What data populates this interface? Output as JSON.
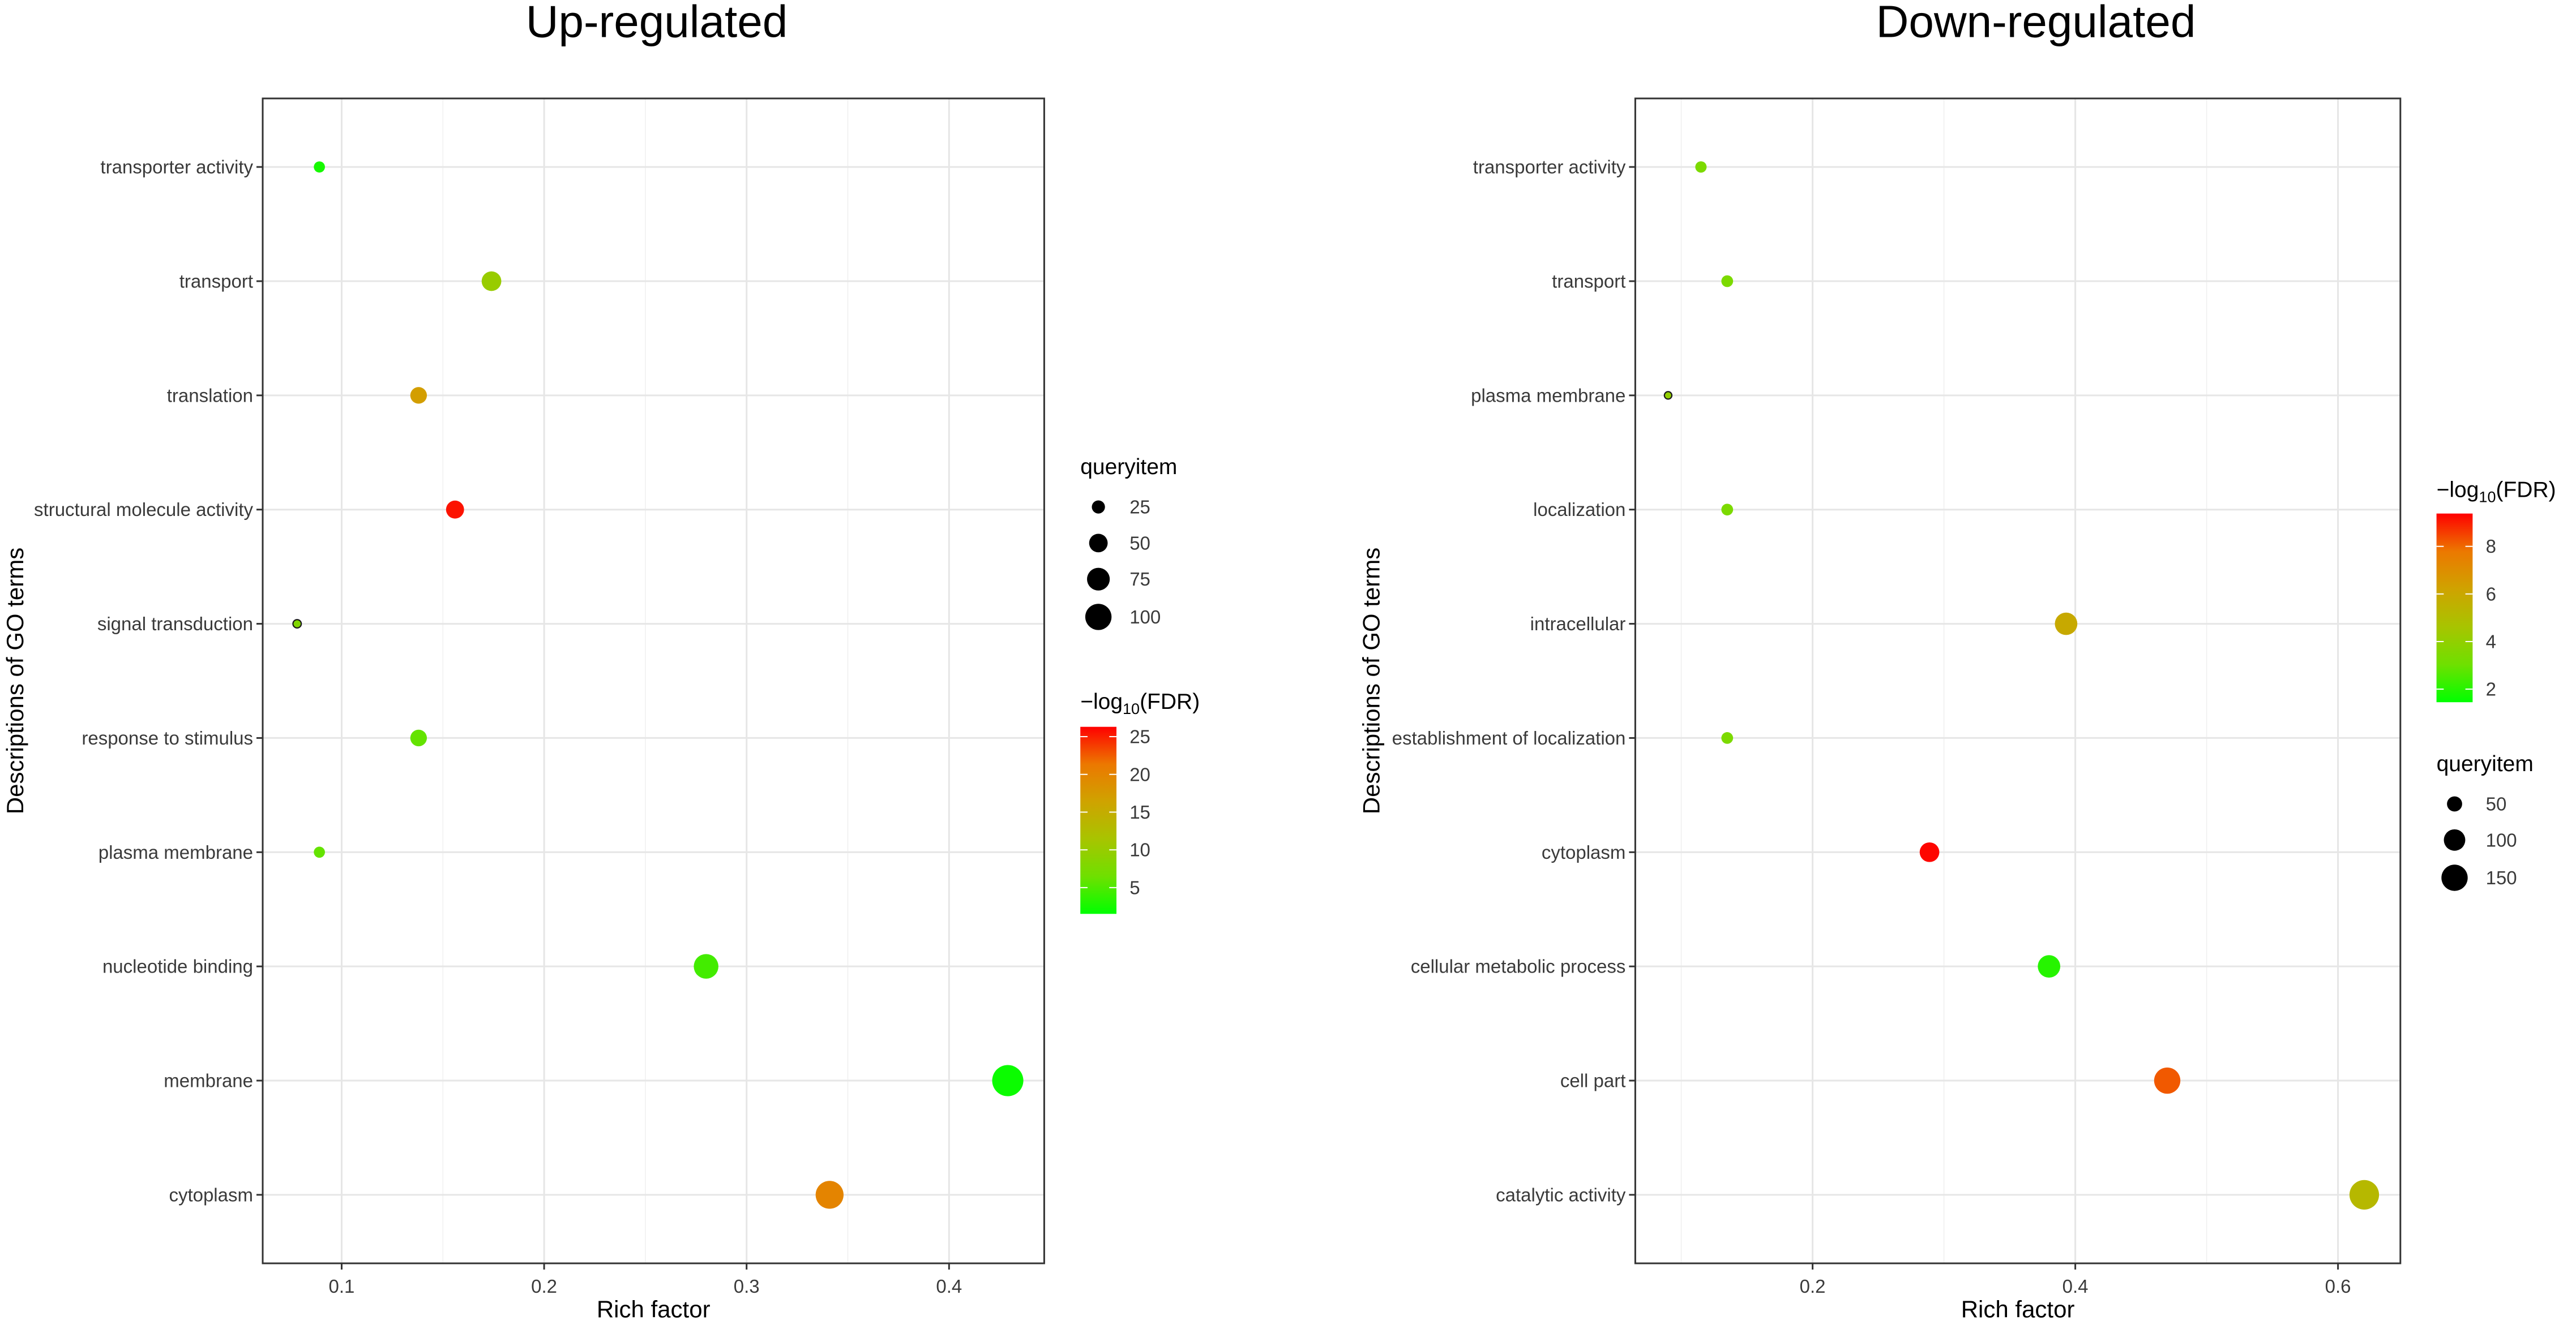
{
  "chart_data": [
    {
      "type": "scatter",
      "title": "Up-regulated",
      "xlabel": "Rich factor",
      "ylabel": "Descriptions of GO terms",
      "xlim": [
        0.061,
        0.447
      ],
      "x_ticks": [
        0.1,
        0.2,
        0.3,
        0.4
      ],
      "x_tick_labels": [
        "0.1",
        "0.2",
        "0.3",
        "0.4"
      ],
      "x_minor_ticks": [
        0.15,
        0.25,
        0.35
      ],
      "grid": true,
      "categories": [
        "transporter activity",
        "transport",
        "translation",
        "structural molecule activity",
        "signal transduction",
        "response to stimulus",
        "plasma membrane",
        "nucleotide binding",
        "membrane",
        "cytoplasm"
      ],
      "x": [
        0.089,
        0.174,
        0.138,
        0.156,
        0.078,
        0.138,
        0.089,
        0.28,
        0.429,
        0.341
      ],
      "queryitem": [
        18,
        56,
        40,
        47,
        10,
        40,
        18,
        88,
        141,
        113
      ],
      "neg_log10_fdr": [
        2.5,
        10,
        17,
        25.5,
        8,
        6,
        6,
        4.5,
        2,
        20
      ],
      "size_legend": {
        "title": "queryitem",
        "breaks": [
          25,
          50,
          75,
          100
        ],
        "labels": [
          "25",
          "50",
          "75",
          "100"
        ]
      },
      "color_legend": {
        "title_prefix": "−log",
        "title_subscript": "10",
        "title_suffix": "(FDR)",
        "range": [
          1.52,
          26.3
        ],
        "breaks": [
          5,
          10,
          15,
          20,
          25
        ],
        "labels": [
          "5",
          "10",
          "15",
          "20",
          "25"
        ],
        "colors": [
          "#00ff00",
          "#6fe000",
          "#a8c400",
          "#cfa300",
          "#ec7800",
          "#ff0000"
        ]
      }
    },
    {
      "type": "scatter",
      "title": "Down-regulated",
      "xlabel": "Rich factor",
      "ylabel": "Descriptions of GO terms",
      "xlim": [
        0.065,
        0.6475
      ],
      "x_ticks": [
        0.2,
        0.4,
        0.6
      ],
      "x_tick_labels": [
        "0.2",
        "0.4",
        "0.6"
      ],
      "x_minor_ticks": [
        0.1,
        0.3,
        0.5
      ],
      "grid": true,
      "categories": [
        "transporter activity",
        "transport",
        "plasma membrane",
        "localization",
        "intracellular",
        "establishment of localization",
        "cytoplasm",
        "cellular metabolic process",
        "cell part",
        "catalytic activity"
      ],
      "x": [
        0.115,
        0.135,
        0.09,
        0.135,
        0.393,
        0.135,
        0.289,
        0.38,
        0.47,
        0.62
      ],
      "queryitem": [
        28,
        30,
        12,
        30,
        110,
        30,
        84,
        110,
        150,
        190
      ],
      "neg_log10_fdr": [
        3.4,
        3.4,
        4,
        3.4,
        5.9,
        3.4,
        9.3,
        2.0,
        8.2,
        5.2
      ],
      "size_legend": {
        "title": "queryitem",
        "breaks": [
          50,
          100,
          150
        ],
        "labels": [
          "50",
          "100",
          "150"
        ]
      },
      "color_legend": {
        "title_prefix": "−log",
        "title_subscript": "10",
        "title_suffix": "(FDR)",
        "range": [
          1.45,
          9.38
        ],
        "breaks": [
          2,
          4,
          6,
          8
        ],
        "labels": [
          "2",
          "4",
          "6",
          "8"
        ],
        "colors": [
          "#00ff00",
          "#6fe000",
          "#a8c400",
          "#cfa300",
          "#ec7800",
          "#ff0000"
        ]
      }
    }
  ]
}
